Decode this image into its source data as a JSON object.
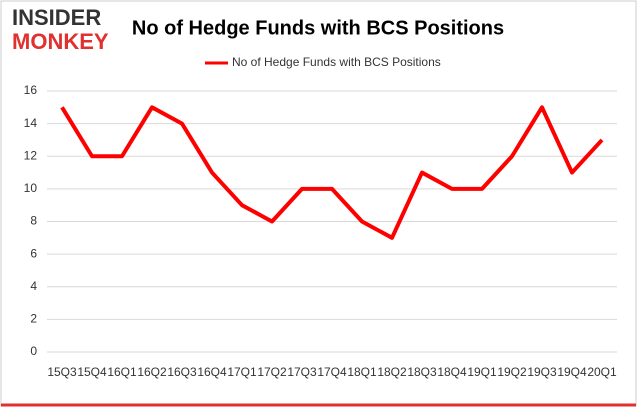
{
  "logo": {
    "top": "INSIDER",
    "bottom": "MONKEY"
  },
  "chart_data": {
    "type": "line",
    "title": "No of Hedge Funds with BCS Positions",
    "categories": [
      "15Q3",
      "15Q4",
      "16Q1",
      "16Q2",
      "16Q3",
      "16Q4",
      "17Q1",
      "17Q2",
      "17Q3",
      "17Q4",
      "18Q1",
      "18Q2",
      "18Q3",
      "18Q4",
      "19Q1",
      "19Q2",
      "19Q3",
      "19Q4",
      "20Q1"
    ],
    "series": [
      {
        "name": "No of Hedge Funds with BCS Positions",
        "color": "#ff0000",
        "values": [
          15,
          12,
          12,
          15,
          14,
          11,
          9,
          8,
          10,
          10,
          8,
          7,
          11,
          10,
          10,
          12,
          15,
          11,
          13
        ]
      }
    ],
    "ylim": [
      0,
      16
    ],
    "yticks": [
      0,
      2,
      4,
      6,
      8,
      10,
      12,
      14,
      16
    ],
    "grid": true,
    "legend": "top"
  }
}
